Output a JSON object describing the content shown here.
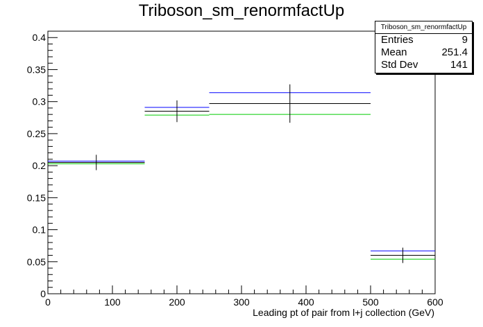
{
  "title": "Triboson_sm_renormfactUp",
  "stats": {
    "title": "Triboson_sm_renormfactUp",
    "rows": [
      {
        "label": "Entries",
        "value": "9"
      },
      {
        "label": "Mean",
        "value": "251.4"
      },
      {
        "label": "Std Dev",
        "value": "141"
      }
    ]
  },
  "chart_data": {
    "type": "bar",
    "title": "Triboson_sm_renormfactUp",
    "xlabel": "Leading pt of pair from l+j collection (GeV)",
    "ylabel": "",
    "xlim": [
      0,
      600
    ],
    "ylim": [
      0,
      0.41
    ],
    "bin_edges": [
      0,
      150,
      250,
      500,
      600
    ],
    "x_ticks": [
      0,
      100,
      200,
      300,
      400,
      500,
      600
    ],
    "y_ticks": [
      0,
      0.05,
      0.1,
      0.15,
      0.2,
      0.25,
      0.3,
      0.35,
      0.4
    ],
    "series": [
      {
        "color": "#000000",
        "values": [
          0.205,
          0.285,
          0.297,
          0.06
        ],
        "errors": [
          0.012,
          0.017,
          0.03,
          0.012
        ]
      },
      {
        "color": "#0000ff",
        "values": [
          0.207,
          0.291,
          0.314,
          0.067
        ]
      },
      {
        "color": "#00cc00",
        "values": [
          0.203,
          0.279,
          0.28,
          0.054
        ]
      }
    ],
    "legend": "none",
    "grid": false
  }
}
